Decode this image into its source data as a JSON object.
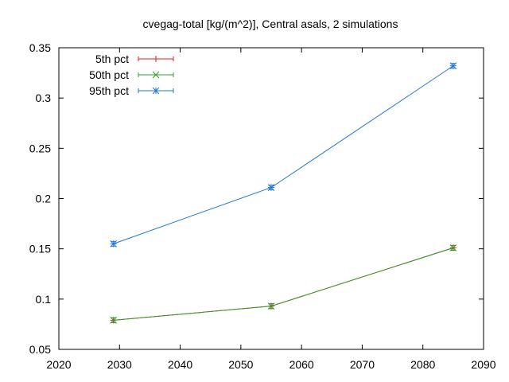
{
  "chart_data": {
    "type": "line",
    "title": "cvegag-total [kg/(m^2)], Central asals, 2 simulations",
    "xlabel": "",
    "ylabel": "",
    "xlim": [
      2020,
      2090
    ],
    "ylim": [
      0.05,
      0.35
    ],
    "x_ticks": [
      2020,
      2030,
      2040,
      2050,
      2060,
      2070,
      2080,
      2090
    ],
    "y_ticks": [
      0.05,
      0.1,
      0.15,
      0.2,
      0.25,
      0.3,
      0.35
    ],
    "x_tick_labels": [
      "2020",
      "2030",
      "2040",
      "2050",
      "2060",
      "2070",
      "2080",
      "2090"
    ],
    "y_tick_labels": [
      "0.05",
      "0.1",
      "0.15",
      "0.2",
      "0.25",
      "0.3",
      "0.35"
    ],
    "grid": false,
    "legend_position": "top-left",
    "x": [
      2029,
      2055,
      2085
    ],
    "series": [
      {
        "name": "5th pct",
        "color": "#e41a1c",
        "marker": "plus",
        "values": [
          0.079,
          0.093,
          0.151
        ]
      },
      {
        "name": "50th pct",
        "color": "#2ca02c",
        "marker": "cross",
        "values": [
          0.079,
          0.093,
          0.151
        ]
      },
      {
        "name": "95th pct",
        "color": "#1f77d4",
        "marker": "star",
        "values": [
          0.155,
          0.211,
          0.332
        ]
      }
    ]
  }
}
